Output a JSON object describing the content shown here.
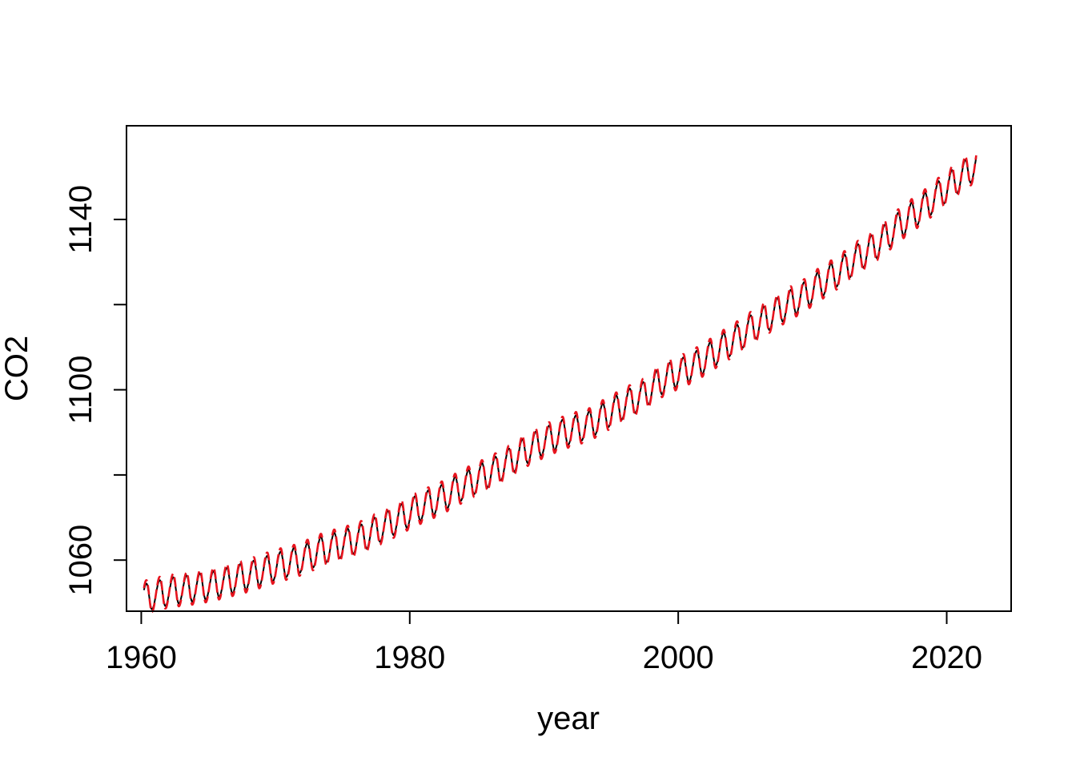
{
  "chart_data": {
    "type": "line",
    "title": "",
    "xlabel": "year",
    "ylabel": "CO2",
    "xlim": [
      1958.9,
      2024.8
    ],
    "ylim": [
      1048,
      1162
    ],
    "x_ticks": [
      1960,
      1980,
      2000,
      2020
    ],
    "x_tick_labels": [
      "1960",
      "1980",
      "2000",
      "2020"
    ],
    "y_ticks": [
      1060,
      1080,
      1100,
      1120,
      1140
    ],
    "y_tick_labels": [
      "1060",
      "",
      "1100",
      "",
      "1140"
    ],
    "grid": false,
    "legend": "none",
    "series": [
      {
        "style": "solid",
        "color": "#000000",
        "x_start": 1960.2,
        "x_end": 2022.2,
        "annual_peaks": [
          [
            1960.38,
            1054.5
          ],
          [
            1961.38,
            1055.3
          ],
          [
            1962.38,
            1056.0
          ],
          [
            1963.38,
            1056.4
          ],
          [
            1964.38,
            1056.9
          ],
          [
            1965.38,
            1057.4
          ],
          [
            1966.38,
            1058.2
          ],
          [
            1967.38,
            1059.1
          ],
          [
            1968.38,
            1059.9
          ],
          [
            1969.38,
            1061.0
          ],
          [
            1970.38,
            1062.0
          ],
          [
            1971.38,
            1062.9
          ],
          [
            1972.38,
            1064.0
          ],
          [
            1973.38,
            1065.5
          ],
          [
            1974.38,
            1066.4
          ],
          [
            1975.38,
            1067.4
          ],
          [
            1976.38,
            1068.4
          ],
          [
            1977.38,
            1070.0
          ],
          [
            1978.38,
            1071.6
          ],
          [
            1979.38,
            1073.2
          ],
          [
            1980.38,
            1075.0
          ],
          [
            1981.38,
            1076.4
          ],
          [
            1982.38,
            1077.7
          ],
          [
            1983.38,
            1079.6
          ],
          [
            1984.38,
            1081.2
          ],
          [
            1985.38,
            1082.8
          ],
          [
            1986.38,
            1084.3
          ],
          [
            1987.38,
            1086.2
          ],
          [
            1988.38,
            1088.4
          ],
          [
            1989.38,
            1090.2
          ],
          [
            1990.38,
            1091.6
          ],
          [
            1991.38,
            1093.0
          ],
          [
            1992.38,
            1094.0
          ],
          [
            1993.38,
            1095.0
          ],
          [
            1994.38,
            1096.8
          ],
          [
            1995.38,
            1098.7
          ],
          [
            1996.38,
            1100.3
          ],
          [
            1997.38,
            1101.8
          ],
          [
            1998.38,
            1104.5
          ],
          [
            1999.38,
            1106.4
          ],
          [
            2000.38,
            1107.6
          ],
          [
            2001.38,
            1109.2
          ],
          [
            2002.38,
            1111.2
          ],
          [
            2003.38,
            1113.4
          ],
          [
            2004.38,
            1115.3
          ],
          [
            2005.38,
            1117.5
          ],
          [
            2006.38,
            1119.6
          ],
          [
            2007.38,
            1121.6
          ],
          [
            2008.38,
            1123.5
          ],
          [
            2009.38,
            1125.3
          ],
          [
            2010.38,
            1127.6
          ],
          [
            2011.38,
            1129.7
          ],
          [
            2012.38,
            1131.8
          ],
          [
            2013.38,
            1134.2
          ],
          [
            2014.38,
            1136.3
          ],
          [
            2015.38,
            1138.8
          ],
          [
            2016.38,
            1141.6
          ],
          [
            2017.38,
            1144.0
          ],
          [
            2018.38,
            1146.3
          ],
          [
            2019.38,
            1149.0
          ],
          [
            2020.38,
            1151.6
          ],
          [
            2021.38,
            1154.0
          ]
        ],
        "seasonal_amplitude": 3.2
      },
      {
        "style": "dashed",
        "color": "#e8141e",
        "x_start": 1960.2,
        "x_end": 2022.2,
        "annual_peaks": [
          [
            1960.38,
            1055.3
          ],
          [
            1961.38,
            1056.1
          ],
          [
            1962.38,
            1056.8
          ],
          [
            1963.38,
            1057.1
          ],
          [
            1964.38,
            1057.6
          ],
          [
            1965.38,
            1058.2
          ],
          [
            1966.38,
            1059.0
          ],
          [
            1967.38,
            1059.8
          ],
          [
            1968.38,
            1060.7
          ],
          [
            1969.38,
            1061.8
          ],
          [
            1970.38,
            1062.8
          ],
          [
            1971.38,
            1063.6
          ],
          [
            1972.38,
            1064.8
          ],
          [
            1973.38,
            1066.2
          ],
          [
            1974.38,
            1067.2
          ],
          [
            1975.38,
            1068.1
          ],
          [
            1976.38,
            1069.2
          ],
          [
            1977.38,
            1070.8
          ],
          [
            1978.38,
            1072.3
          ],
          [
            1979.38,
            1074.0
          ],
          [
            1980.38,
            1075.7
          ],
          [
            1981.38,
            1077.1
          ],
          [
            1982.38,
            1078.5
          ],
          [
            1983.38,
            1080.3
          ],
          [
            1984.38,
            1082.0
          ],
          [
            1985.38,
            1083.5
          ],
          [
            1986.38,
            1085.1
          ],
          [
            1987.38,
            1086.9
          ],
          [
            1988.38,
            1089.2
          ],
          [
            1989.38,
            1090.9
          ],
          [
            1990.38,
            1092.4
          ],
          [
            1991.38,
            1093.7
          ],
          [
            1992.38,
            1094.8
          ],
          [
            1993.38,
            1095.7
          ],
          [
            1994.38,
            1097.6
          ],
          [
            1995.38,
            1099.4
          ],
          [
            1996.38,
            1101.1
          ],
          [
            1997.38,
            1102.6
          ],
          [
            1998.38,
            1105.3
          ],
          [
            1999.38,
            1107.1
          ],
          [
            2000.38,
            1108.4
          ],
          [
            2001.38,
            1110.0
          ],
          [
            2002.38,
            1112.0
          ],
          [
            2003.38,
            1114.1
          ],
          [
            2004.38,
            1116.1
          ],
          [
            2005.38,
            1118.3
          ],
          [
            2006.38,
            1120.4
          ],
          [
            2007.38,
            1122.3
          ],
          [
            2008.38,
            1124.3
          ],
          [
            2009.38,
            1126.0
          ],
          [
            2010.38,
            1128.4
          ],
          [
            2011.38,
            1130.4
          ],
          [
            2012.38,
            1132.6
          ],
          [
            2013.38,
            1135.0
          ],
          [
            2014.38,
            1137.0
          ],
          [
            2015.38,
            1139.6
          ],
          [
            2016.38,
            1142.4
          ],
          [
            2017.38,
            1144.8
          ],
          [
            2018.38,
            1147.1
          ],
          [
            2019.38,
            1149.8
          ],
          [
            2020.38,
            1152.4
          ],
          [
            2021.38,
            1154.8
          ]
        ],
        "seasonal_amplitude": 3.9
      }
    ]
  }
}
